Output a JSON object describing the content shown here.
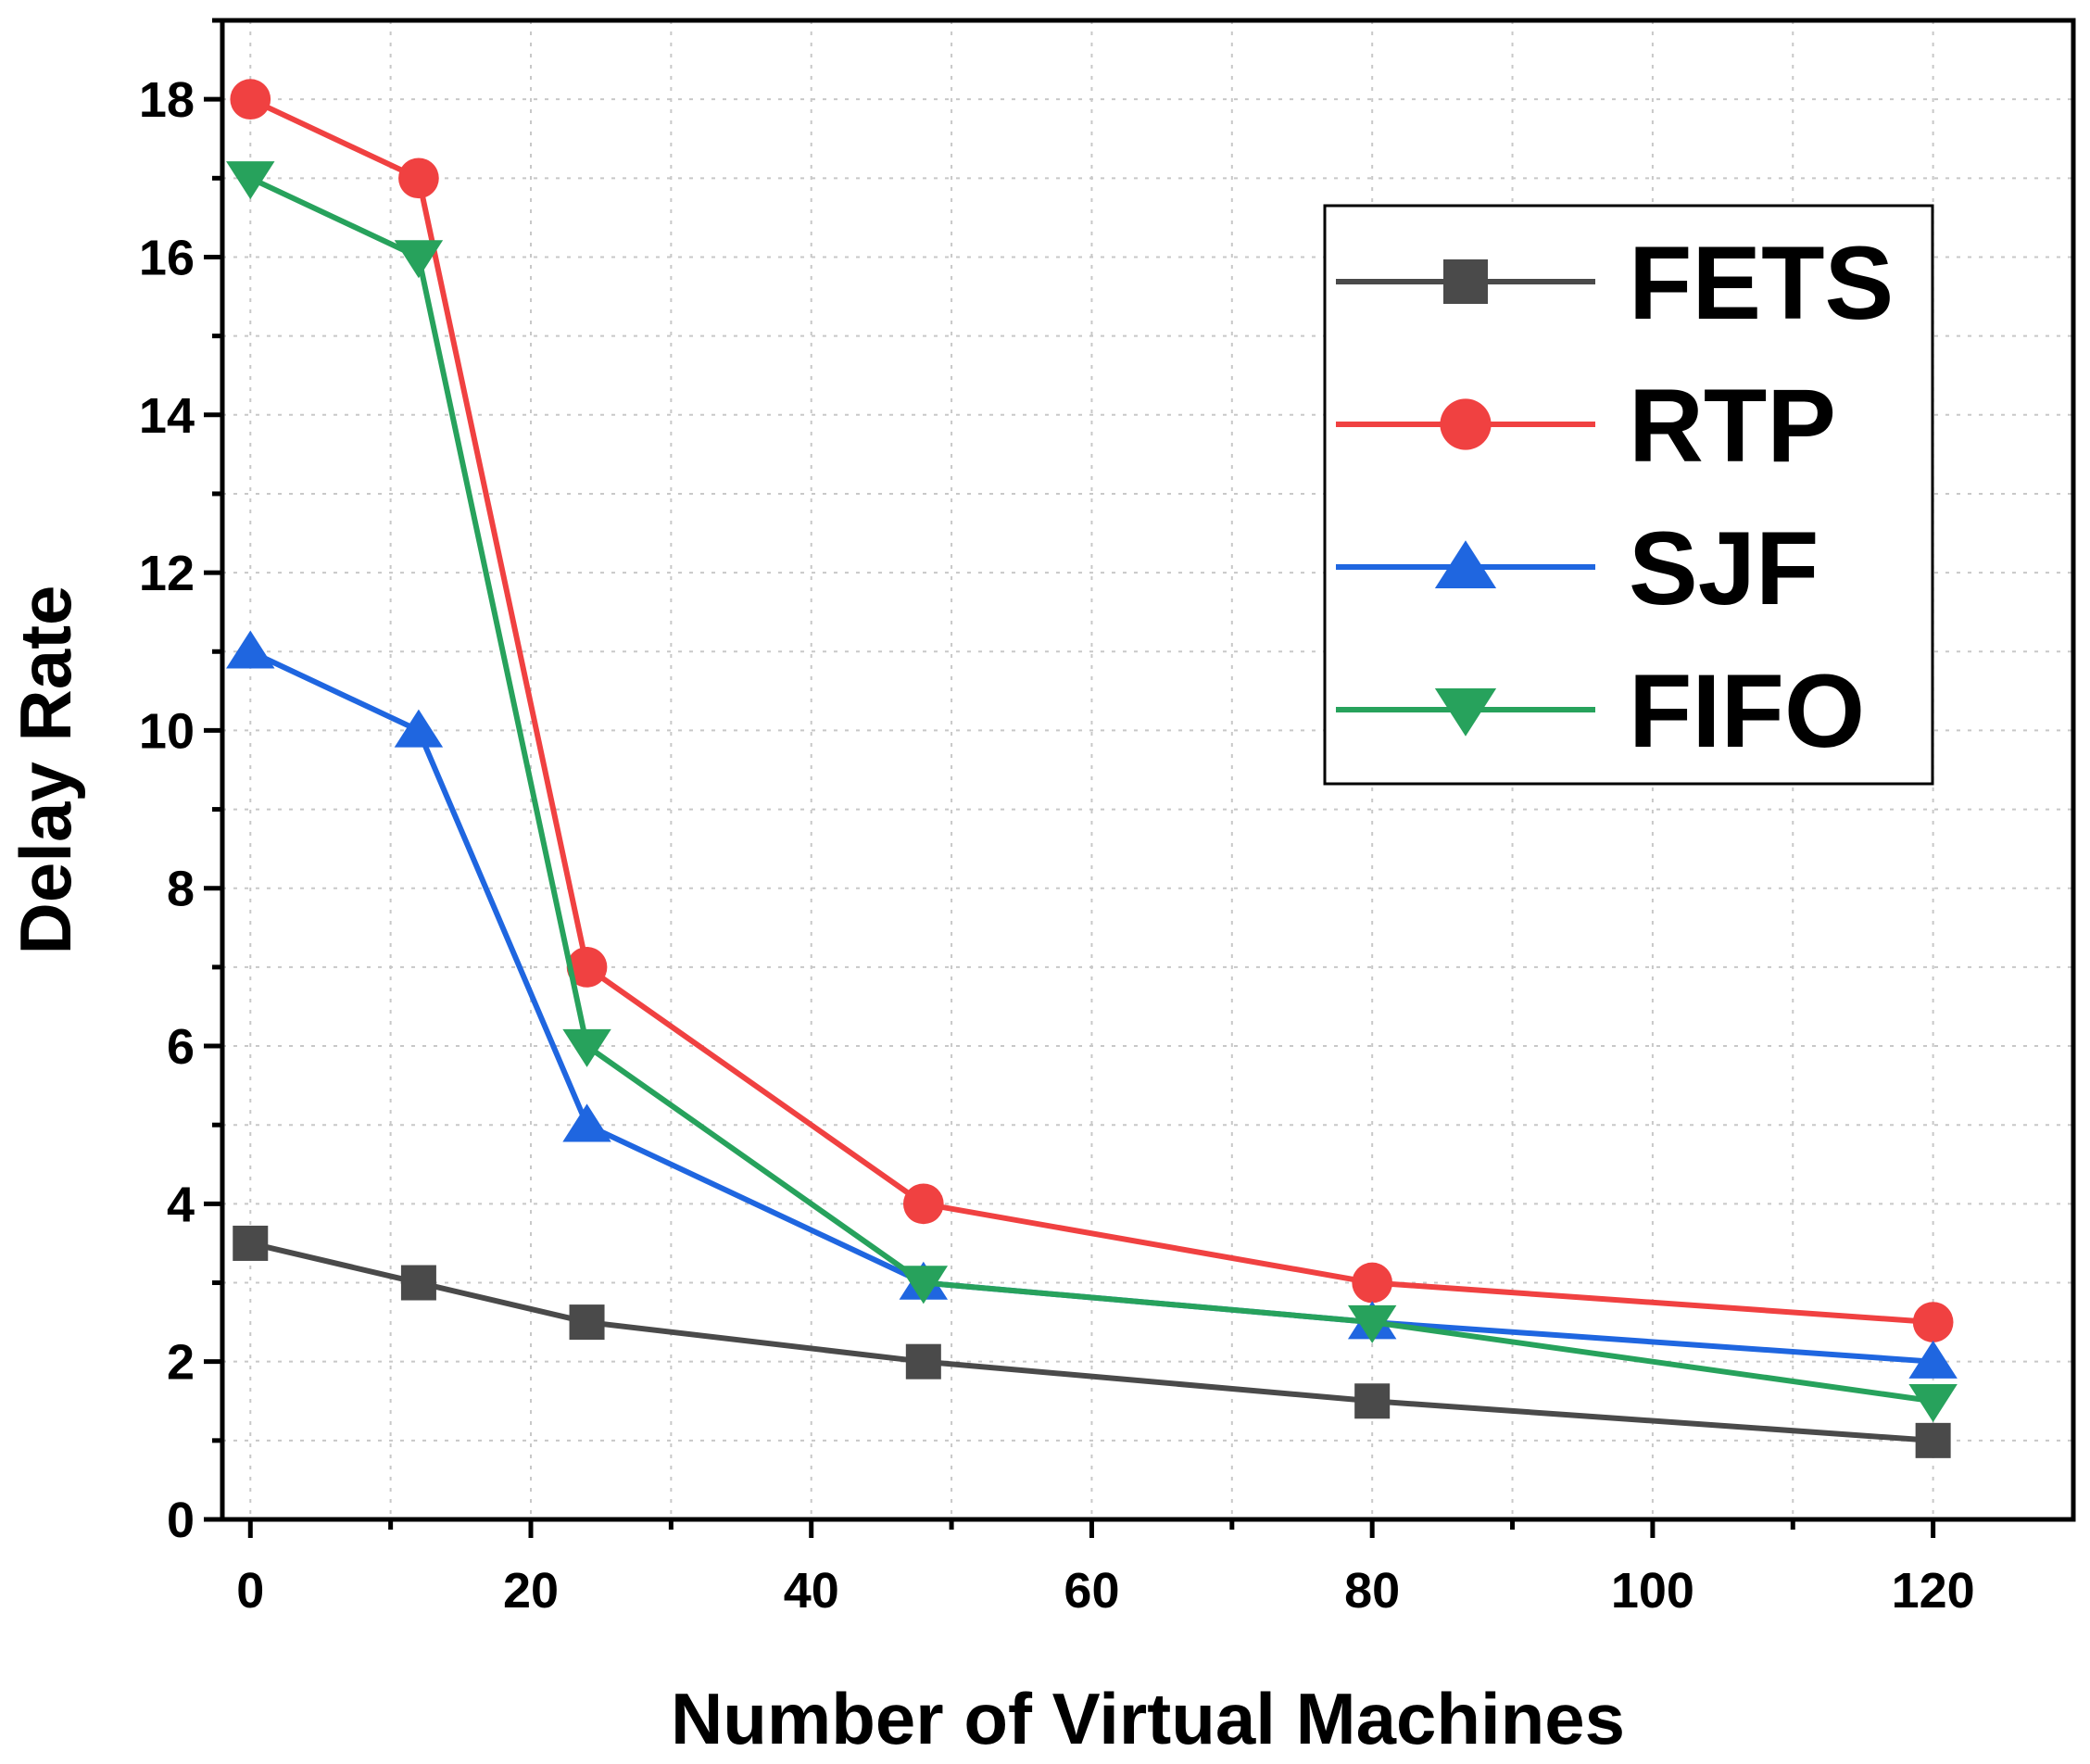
{
  "chart_data": {
    "type": "line",
    "title": "",
    "xlabel": "Number of Virtual Machines",
    "ylabel": "Delay Rate",
    "xlim": [
      -2,
      130
    ],
    "ylim": [
      0,
      19
    ],
    "xticks": [
      0,
      20,
      40,
      60,
      80,
      100,
      120
    ],
    "yticks": [
      0,
      2,
      4,
      6,
      8,
      10,
      12,
      14,
      16,
      18
    ],
    "x_minor_step": 10,
    "y_minor_step": 1,
    "grid": "dotted",
    "legend_position": "top-right",
    "x": [
      0,
      12,
      24,
      48,
      80,
      120
    ],
    "series": [
      {
        "name": "FETS",
        "marker": "square",
        "color": "#4a4a4a",
        "values": [
          3.5,
          3.0,
          2.5,
          2.0,
          1.5,
          1.0
        ]
      },
      {
        "name": "RTP",
        "marker": "circle",
        "color": "#f04141",
        "values": [
          18,
          17,
          7,
          4,
          3,
          2.5
        ]
      },
      {
        "name": "SJF",
        "marker": "triangle-up",
        "color": "#1f66e0",
        "values": [
          11,
          10,
          5,
          3,
          2.5,
          2
        ]
      },
      {
        "name": "FIFO",
        "marker": "triangle-down",
        "color": "#27a25c",
        "values": [
          17,
          16,
          6,
          3,
          2.5,
          1.5
        ]
      }
    ]
  }
}
